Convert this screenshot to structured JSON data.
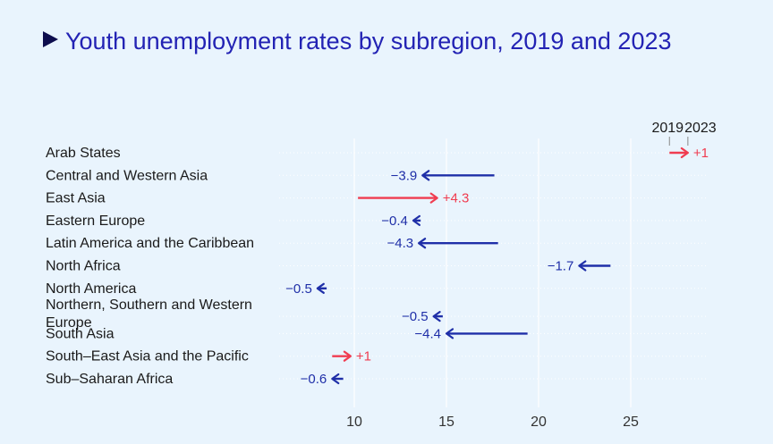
{
  "chart_data": {
    "type": "arrow-dumbbell",
    "title": "Youth unemployment rates by subregion, 2019 and 2023",
    "xlabel": "",
    "ylabel": "",
    "xlim": [
      7,
      30
    ],
    "xticks": [
      10,
      15,
      20,
      25
    ],
    "legend": {
      "start_label": "2019",
      "end_label": "2023",
      "position": "top-right"
    },
    "colors": {
      "decrease": "#1f2fa8",
      "increase": "#f03c50",
      "background": "#e9f4fd",
      "title": "#2323b4"
    },
    "series_names": [
      "2019",
      "2023"
    ],
    "rows": [
      {
        "region": "Arab States",
        "v2019": 27.1,
        "v2023": 28.1,
        "change": "+1"
      },
      {
        "region": "Central and Western Asia",
        "v2019": 17.6,
        "v2023": 13.7,
        "change": "−3.9"
      },
      {
        "region": "East Asia",
        "v2019": 10.2,
        "v2023": 14.5,
        "change": "+4.3"
      },
      {
        "region": "Eastern Europe",
        "v2019": 13.6,
        "v2023": 13.2,
        "change": "−0.4"
      },
      {
        "region": "Latin America and the Caribbean",
        "v2019": 17.8,
        "v2023": 13.5,
        "change": "−4.3"
      },
      {
        "region": "North Africa",
        "v2019": 23.9,
        "v2023": 22.2,
        "change": "−1.7"
      },
      {
        "region": "North America",
        "v2019": 8.5,
        "v2023": 8.0,
        "change": "−0.5"
      },
      {
        "region": "Northern, Southern and Western Europe",
        "region_lines": [
          "Northern, Southern and Western",
          "Europe"
        ],
        "v2019": 14.8,
        "v2023": 14.3,
        "change": "−0.5"
      },
      {
        "region": "South Asia",
        "v2019": 19.4,
        "v2023": 15.0,
        "change": "−4.4"
      },
      {
        "region": "South–East Asia and the Pacific",
        "v2019": 8.8,
        "v2023": 9.8,
        "change": "+1"
      },
      {
        "region": "Sub–Saharan Africa",
        "v2019": 9.4,
        "v2023": 8.8,
        "change": "−0.6"
      }
    ]
  }
}
